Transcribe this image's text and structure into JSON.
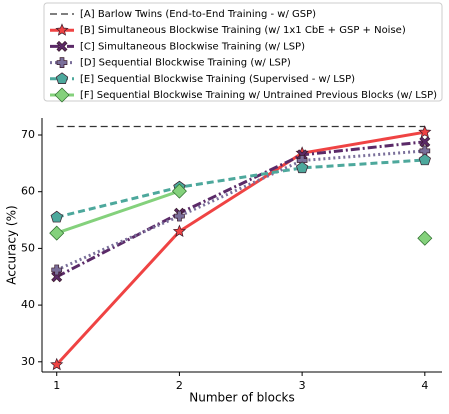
{
  "chart_data": {
    "type": "line",
    "x": [
      1,
      2,
      3,
      4
    ],
    "xlabel": "Number of blocks",
    "ylabel": "Accuracy (%)",
    "xlim": [
      0.88,
      4.14
    ],
    "xticks": [
      1,
      2,
      3,
      4
    ],
    "ylim": [
      28.2,
      73
    ],
    "yticks": [
      30,
      40,
      50,
      60,
      70
    ],
    "grid": false,
    "legend": "top",
    "series": [
      {
        "name": "[A] Barlow Twins (End-to-End Training - w/ GSP)",
        "color": "#333333",
        "linestyle": "dashed",
        "marker": "none",
        "values": [
          71.5,
          71.5,
          71.5,
          71.5
        ]
      },
      {
        "name": "[B] Simultaneous Blockwise Training (w/ 1x1 CbE + GSP + Noise)",
        "color": "#ef4343",
        "linestyle": "solid",
        "marker": "star",
        "values": [
          29.5,
          53,
          66.8,
          70.5
        ]
      },
      {
        "name": "[C] Simultaneous Blockwise Training (w/ LSP)",
        "color": "#5b2a68",
        "linestyle": "dashdot",
        "marker": "x",
        "values": [
          45,
          56.2,
          66.5,
          68.8
        ]
      },
      {
        "name": "[D] Sequential Blockwise Training (w/ LSP)",
        "color": "#7a6f9a",
        "linestyle": "dotted",
        "marker": "plus",
        "values": [
          46.2,
          55.7,
          65.5,
          67.2
        ]
      },
      {
        "name": "[E] Sequential Blockwise Training (Supervised - w/ LSP)",
        "color": "#4da89c",
        "linestyle": "dashed",
        "marker": "pentagon",
        "values": [
          55.5,
          60.8,
          64.2,
          65.6
        ]
      },
      {
        "name": "[F] Sequential Blockwise Training w/ Untrained Previous Blocks (w/ LSP)",
        "color": "#84d17c",
        "linestyle": "solid",
        "marker": "diamond",
        "values": [
          52.7,
          60.1,
          null,
          51.8
        ]
      }
    ]
  }
}
